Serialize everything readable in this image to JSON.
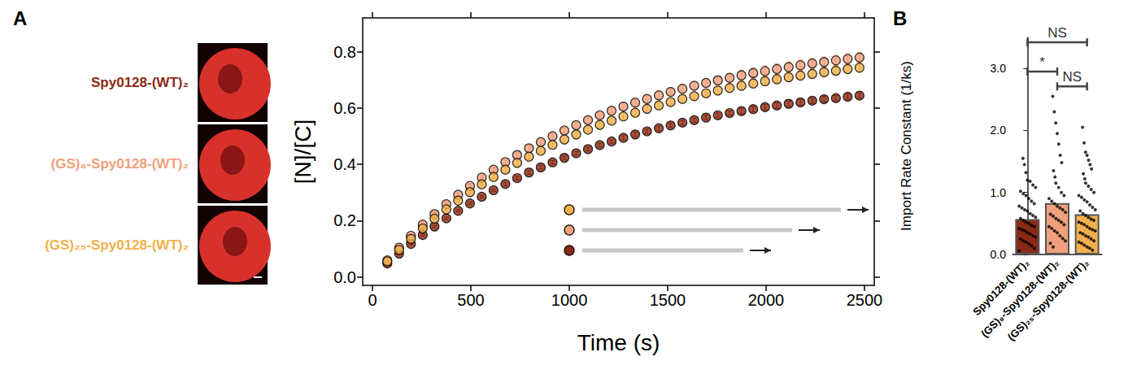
{
  "chart_data": [
    {
      "panel": "A",
      "type": "scatter",
      "marker": "circle",
      "grid": false,
      "x_label": "Time (s)",
      "y_label": "[N]/[C]",
      "xlim": [
        -50,
        2550
      ],
      "xticks": [
        0,
        500,
        1000,
        1500,
        2000,
        2500
      ],
      "ylim": [
        -0.03,
        0.92
      ],
      "yticks": [
        {
          "value": 0,
          "label": "0.0"
        },
        0.2,
        0.4,
        0.6,
        0.8
      ],
      "x": [
        75,
        135,
        195,
        255,
        315,
        375,
        435,
        495,
        555,
        615,
        675,
        735,
        795,
        855,
        915,
        975,
        1035,
        1095,
        1155,
        1215,
        1275,
        1335,
        1395,
        1455,
        1515,
        1575,
        1635,
        1695,
        1755,
        1815,
        1875,
        1935,
        1995,
        2055,
        2115,
        2175,
        2235,
        2295,
        2355,
        2415,
        2475
      ],
      "series": [
        {
          "name": "Spy0128-(WT)₂",
          "color": "#8b2a14",
          "values": [
            0.048,
            0.083,
            0.117,
            0.149,
            0.179,
            0.208,
            0.235,
            0.261,
            0.285,
            0.308,
            0.33,
            0.351,
            0.371,
            0.389,
            0.407,
            0.423,
            0.439,
            0.454,
            0.468,
            0.481,
            0.494,
            0.506,
            0.517,
            0.528,
            0.538,
            0.548,
            0.557,
            0.566,
            0.574,
            0.582,
            0.589,
            0.596,
            0.603,
            0.609,
            0.615,
            0.62,
            0.626,
            0.631,
            0.635,
            0.64,
            0.644
          ],
          "errors": [
            0.004,
            0.004,
            0.004,
            0.004,
            0.004,
            0.004,
            0.004,
            0.004,
            0.004,
            0.004,
            0.006,
            0.006,
            0.006,
            0.006,
            0.006,
            0.006,
            0.006,
            0.006,
            0.006,
            0.006,
            0.008,
            0.008,
            0.008,
            0.008,
            0.008,
            0.008,
            0.008,
            0.008,
            0.008,
            0.008,
            0.01,
            0.01,
            0.01,
            0.01,
            0.01,
            0.01,
            0.01,
            0.01,
            0.01,
            0.01,
            0.01
          ]
        },
        {
          "name": "(GS)₈-Spy0128-(WT)₂",
          "color": "#f0a07c",
          "values": [
            0.059,
            0.104,
            0.146,
            0.186,
            0.223,
            0.258,
            0.292,
            0.323,
            0.353,
            0.381,
            0.408,
            0.433,
            0.457,
            0.479,
            0.5,
            0.52,
            0.539,
            0.557,
            0.574,
            0.59,
            0.605,
            0.619,
            0.632,
            0.645,
            0.657,
            0.668,
            0.679,
            0.689,
            0.698,
            0.707,
            0.716,
            0.724,
            0.731,
            0.738,
            0.745,
            0.752,
            0.758,
            0.763,
            0.769,
            0.774,
            0.779
          ],
          "errors": [
            0.006,
            0.006,
            0.006,
            0.006,
            0.006,
            0.006,
            0.006,
            0.006,
            0.006,
            0.006,
            0.01,
            0.01,
            0.01,
            0.01,
            0.01,
            0.01,
            0.01,
            0.01,
            0.01,
            0.01,
            0.014,
            0.014,
            0.014,
            0.014,
            0.014,
            0.014,
            0.014,
            0.014,
            0.014,
            0.014,
            0.018,
            0.018,
            0.018,
            0.018,
            0.018,
            0.018,
            0.018,
            0.018,
            0.018,
            0.018,
            0.018
          ]
        },
        {
          "name": "(GS)₂₅-Spy0128-(WT)₂",
          "color": "#f2b04c",
          "values": [
            0.055,
            0.096,
            0.135,
            0.172,
            0.207,
            0.24,
            0.271,
            0.301,
            0.329,
            0.355,
            0.381,
            0.405,
            0.427,
            0.448,
            0.469,
            0.488,
            0.506,
            0.523,
            0.54,
            0.555,
            0.57,
            0.583,
            0.597,
            0.609,
            0.621,
            0.632,
            0.642,
            0.652,
            0.662,
            0.671,
            0.679,
            0.687,
            0.695,
            0.702,
            0.709,
            0.715,
            0.721,
            0.727,
            0.732,
            0.738,
            0.743
          ],
          "errors": [
            0.005,
            0.005,
            0.005,
            0.005,
            0.005,
            0.005,
            0.005,
            0.005,
            0.005,
            0.005,
            0.009,
            0.009,
            0.009,
            0.009,
            0.009,
            0.009,
            0.009,
            0.009,
            0.009,
            0.009,
            0.012,
            0.012,
            0.012,
            0.012,
            0.012,
            0.012,
            0.012,
            0.012,
            0.012,
            0.012,
            0.015,
            0.015,
            0.015,
            0.015,
            0.015,
            0.015,
            0.015,
            0.015,
            0.015,
            0.015,
            0.015
          ]
        }
      ]
    },
    {
      "panel": "B",
      "type": "bar",
      "grid": false,
      "y_label": "Import Rate Constant (1/ks)",
      "categories": [
        "Spy0128-(WT)₂",
        "(GS)₈-Spy0128-(WT)₂",
        "(GS)₂₅-Spy0128-(WT)₂"
      ],
      "values": [
        0.57,
        0.83,
        0.65
      ],
      "colors": [
        "#8b2a14",
        "#f0a07c",
        "#f2b04c"
      ],
      "ylim": [
        0,
        3.5
      ],
      "yticks": [
        {
          "value": 0,
          "label": "0.0"
        },
        {
          "value": 1,
          "label": "1.0"
        },
        {
          "value": 2,
          "label": "2.0"
        },
        {
          "value": 3,
          "label": "3.0"
        }
      ],
      "points": [
        [
          1.55,
          1.45,
          1.32,
          1.2,
          1.18,
          1.12,
          1.08,
          1.02,
          0.98,
          0.95,
          0.9,
          0.86,
          0.82,
          0.78,
          0.75,
          0.72,
          0.7,
          0.66,
          0.63,
          0.6,
          0.58,
          0.55,
          0.52,
          0.5,
          0.47,
          0.45,
          0.42,
          0.4,
          0.38,
          0.35,
          0.33,
          0.3,
          0.28,
          0.25,
          0.22,
          0.2,
          0.17,
          0.14,
          0.1,
          0.06
        ],
        [
          2.55,
          2.3,
          2.12,
          1.95,
          1.78,
          1.6,
          1.48,
          1.35,
          1.25,
          1.15,
          1.08,
          1.0,
          0.95,
          0.9,
          0.86,
          0.82,
          0.78,
          0.75,
          0.72,
          0.68,
          0.65,
          0.62,
          0.58,
          0.55,
          0.52,
          0.48,
          0.45,
          0.42,
          0.38,
          0.35,
          0.3,
          0.26,
          0.22,
          0.18,
          0.12
        ],
        [
          2.05,
          1.8,
          1.65,
          1.6,
          1.52,
          1.45,
          1.38,
          1.3,
          1.22,
          1.15,
          1.1,
          1.05,
          1.0,
          0.95,
          0.92,
          0.88,
          0.85,
          0.8,
          0.76,
          0.72,
          0.7,
          0.66,
          0.63,
          0.6,
          0.57,
          0.55,
          0.52,
          0.5,
          0.48,
          0.45,
          0.42,
          0.4,
          0.38,
          0.35,
          0.33,
          0.3,
          0.28,
          0.25,
          0.22,
          0.2,
          0.18,
          0.15,
          0.12,
          0.1,
          0.07
        ]
      ],
      "significance": [
        {
          "from": "Spy0128-(WT)₂",
          "to": "(GS)₂₅-Spy0128-(WT)₂",
          "label": "NS",
          "y": 3.42
        },
        {
          "from": "Spy0128-(WT)₂",
          "to": "(GS)₈-Spy0128-(WT)₂",
          "label": "*",
          "y": 2.95
        },
        {
          "from": "(GS)₈-Spy0128-(WT)₂",
          "to": "(GS)₂₅-Spy0128-(WT)₂",
          "label": "NS",
          "y": 2.71
        }
      ]
    }
  ]
}
